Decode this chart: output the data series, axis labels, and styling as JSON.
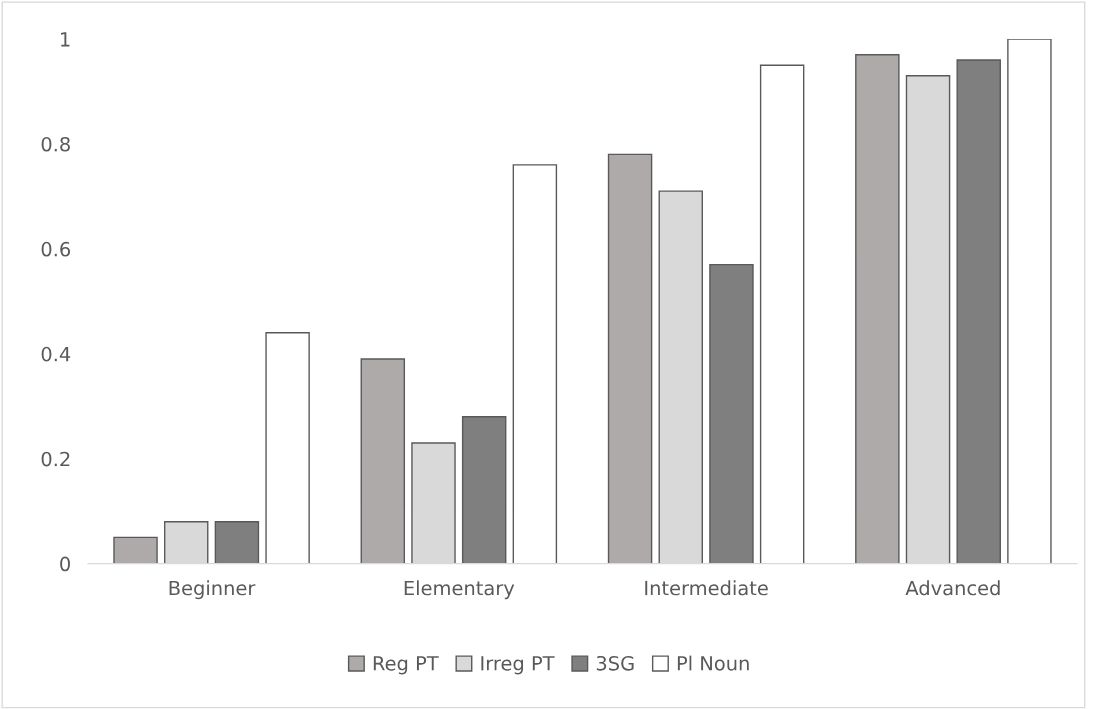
{
  "chart_data": {
    "type": "bar",
    "categories": [
      "Beginner",
      "Elementary",
      "Intermediate",
      "Advanced"
    ],
    "series": [
      {
        "name": "Reg PT",
        "color": "#aeaaaa",
        "values": [
          0.05,
          0.39,
          0.78,
          0.97
        ]
      },
      {
        "name": "Irreg PT",
        "color": "#d9d9d9",
        "values": [
          0.08,
          0.23,
          0.71,
          0.93
        ]
      },
      {
        "name": "3SG",
        "color": "#7f7f7f",
        "values": [
          0.08,
          0.28,
          0.57,
          0.96
        ]
      },
      {
        "name": "Pl Noun",
        "color": "#ffffff",
        "values": [
          0.44,
          0.76,
          0.95,
          1.0
        ]
      }
    ],
    "ylim": [
      0,
      1.0
    ],
    "yticks": [
      0,
      0.2,
      0.4,
      0.6,
      0.8,
      1
    ],
    "grid": false,
    "legend": "bottom"
  }
}
